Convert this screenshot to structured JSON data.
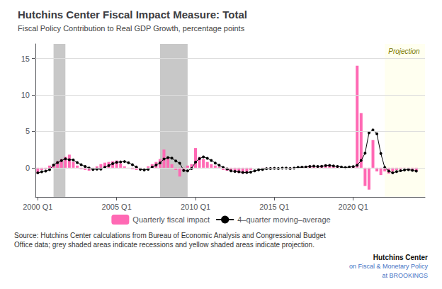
{
  "chart_data": {
    "type": "bar",
    "title": "Hutchins Center Fiscal Impact Measure: Total",
    "subtitle": "Fiscal Policy Contribution to Real GDP Growth, percentage points",
    "source": "Source: Hutchins Center calculations from Bureau of Economic Analysis and Congressional Budget\nOffice data; grey shaded areas indicate recessions and yellow shaded areas indicate projection.",
    "annotations": [
      "Hutchins Center",
      "on Fiscal & Monetary Policy",
      "at BROOKINGS"
    ],
    "bands": [
      {
        "x": [
          2001.0,
          2001.75
        ],
        "color": "#C8C8C8"
      },
      {
        "x": [
          2007.75,
          2009.5
        ],
        "color": "#C8C8C8"
      },
      {
        "x": [
          2022.0,
          2024.55
        ],
        "color": "#FFFFF0",
        "label": "Projection"
      }
    ],
    "x": [
      2000.0,
      2000.25,
      2000.5,
      2000.75,
      2001.0,
      2001.25,
      2001.5,
      2001.75,
      2002.0,
      2002.25,
      2002.5,
      2002.75,
      2003.0,
      2003.25,
      2003.5,
      2003.75,
      2004.0,
      2004.25,
      2004.5,
      2004.75,
      2005.0,
      2005.25,
      2005.5,
      2005.75,
      2006.0,
      2006.25,
      2006.5,
      2006.75,
      2007.0,
      2007.25,
      2007.5,
      2007.75,
      2008.0,
      2008.25,
      2008.5,
      2008.75,
      2009.0,
      2009.25,
      2009.5,
      2009.75,
      2010.0,
      2010.25,
      2010.5,
      2010.75,
      2011.0,
      2011.25,
      2011.5,
      2011.75,
      2012.0,
      2012.25,
      2012.5,
      2012.75,
      2013.0,
      2013.25,
      2013.5,
      2013.75,
      2014.0,
      2014.25,
      2014.5,
      2014.75,
      2015.0,
      2015.25,
      2015.5,
      2015.75,
      2016.0,
      2016.25,
      2016.5,
      2016.75,
      2017.0,
      2017.25,
      2017.5,
      2017.75,
      2018.0,
      2018.25,
      2018.5,
      2018.75,
      2019.0,
      2019.25,
      2019.5,
      2019.75,
      2020.0,
      2020.25,
      2020.5,
      2020.75,
      2021.0,
      2021.25,
      2021.5,
      2021.75,
      2022.0,
      2022.25,
      2022.5,
      2022.75,
      2023.0,
      2023.25,
      2023.5,
      2023.75,
      2024.0
    ],
    "series": [
      {
        "name": "Quarterly fiscal impact",
        "type": "bar",
        "color": "#FF69B4",
        "values": [
          -0.8,
          -0.3,
          -0.2,
          0.3,
          0.5,
          0.9,
          1.2,
          1.5,
          1.8,
          0.8,
          0.3,
          -0.2,
          -0.3,
          -0.4,
          -0.2,
          0.2,
          0.5,
          0.7,
          0.8,
          0.9,
          1.0,
          0.6,
          0.2,
          -0.1,
          -0.2,
          -0.3,
          -0.2,
          0.0,
          0.2,
          0.5,
          0.8,
          1.2,
          2.5,
          1.5,
          0.5,
          -0.3,
          -1.2,
          -0.5,
          0.3,
          0.5,
          2.7,
          1.5,
          1.2,
          0.8,
          0.5,
          0.3,
          0.1,
          -0.3,
          -0.4,
          -0.5,
          -0.6,
          -0.7,
          -0.8,
          -0.6,
          -0.3,
          0.0,
          0.0,
          -0.1,
          -0.2,
          -0.2,
          -0.1,
          0.0,
          0.0,
          -0.1,
          -0.2,
          -0.1,
          0.0,
          0.1,
          0.2,
          0.3,
          0.2,
          0.1,
          0.3,
          0.4,
          0.3,
          0.2,
          0.1,
          0.0,
          -0.1,
          0.0,
          0.1,
          14.0,
          7.5,
          -2.5,
          -3.0,
          3.8,
          -0.5,
          -1.0,
          -0.5,
          -0.8,
          -0.5,
          -0.3,
          -0.2,
          -0.1,
          -0.3,
          -0.4,
          -0.5
        ]
      },
      {
        "name": "4–quarter moving–average",
        "type": "line",
        "color": "#000000",
        "marker": "circle",
        "values": [
          -0.7,
          -0.55,
          -0.45,
          -0.25,
          0.375,
          0.725,
          0.975,
          1.225,
          1.1,
          1.075,
          0.725,
          0.425,
          0.175,
          -0.025,
          -0.225,
          -0.175,
          -0.175,
          0.05,
          0.3,
          0.575,
          0.75,
          0.8,
          0.85,
          0.7,
          0.425,
          0.1,
          -0.2,
          -0.3,
          -0.2,
          0.075,
          0.375,
          0.675,
          1.2,
          1.4,
          1.325,
          0.925,
          0.625,
          -0.375,
          -0.425,
          -0.1,
          0.775,
          1.25,
          1.5,
          1.3,
          1.0,
          0.65,
          0.35,
          0.05,
          -0.15,
          -0.425,
          -0.5,
          -0.55,
          -0.65,
          -0.65,
          -0.6,
          -0.425,
          -0.275,
          -0.225,
          -0.125,
          -0.1,
          -0.075,
          -0.1,
          -0.05,
          -0.05,
          -0.1,
          -0.05,
          0.05,
          0.075,
          0.1,
          0.175,
          0.225,
          0.175,
          0.2,
          0.3,
          0.325,
          0.25,
          0.175,
          0.1,
          0.025,
          0.1,
          0.15,
          0.35,
          1.0,
          2.0,
          4.8,
          5.2,
          4.65,
          1.95,
          0.025,
          -0.45,
          -0.7,
          -0.525,
          -0.4,
          -0.3,
          -0.25,
          -0.35,
          -0.45
        ]
      }
    ],
    "xlim": [
      1999.85,
      2024.55
    ],
    "xticks": [
      {
        "value": 2000,
        "label": "2000 Q1"
      },
      {
        "value": 2005,
        "label": "2005 Q1"
      },
      {
        "value": 2010,
        "label": "2010 Q1"
      },
      {
        "value": 2015,
        "label": "2015 Q1"
      },
      {
        "value": 2020,
        "label": "2020 Q1"
      }
    ],
    "ylim": [
      -4,
      17
    ],
    "yticks": [
      0,
      5,
      10,
      15
    ],
    "grid": true,
    "legend": "bottom"
  }
}
